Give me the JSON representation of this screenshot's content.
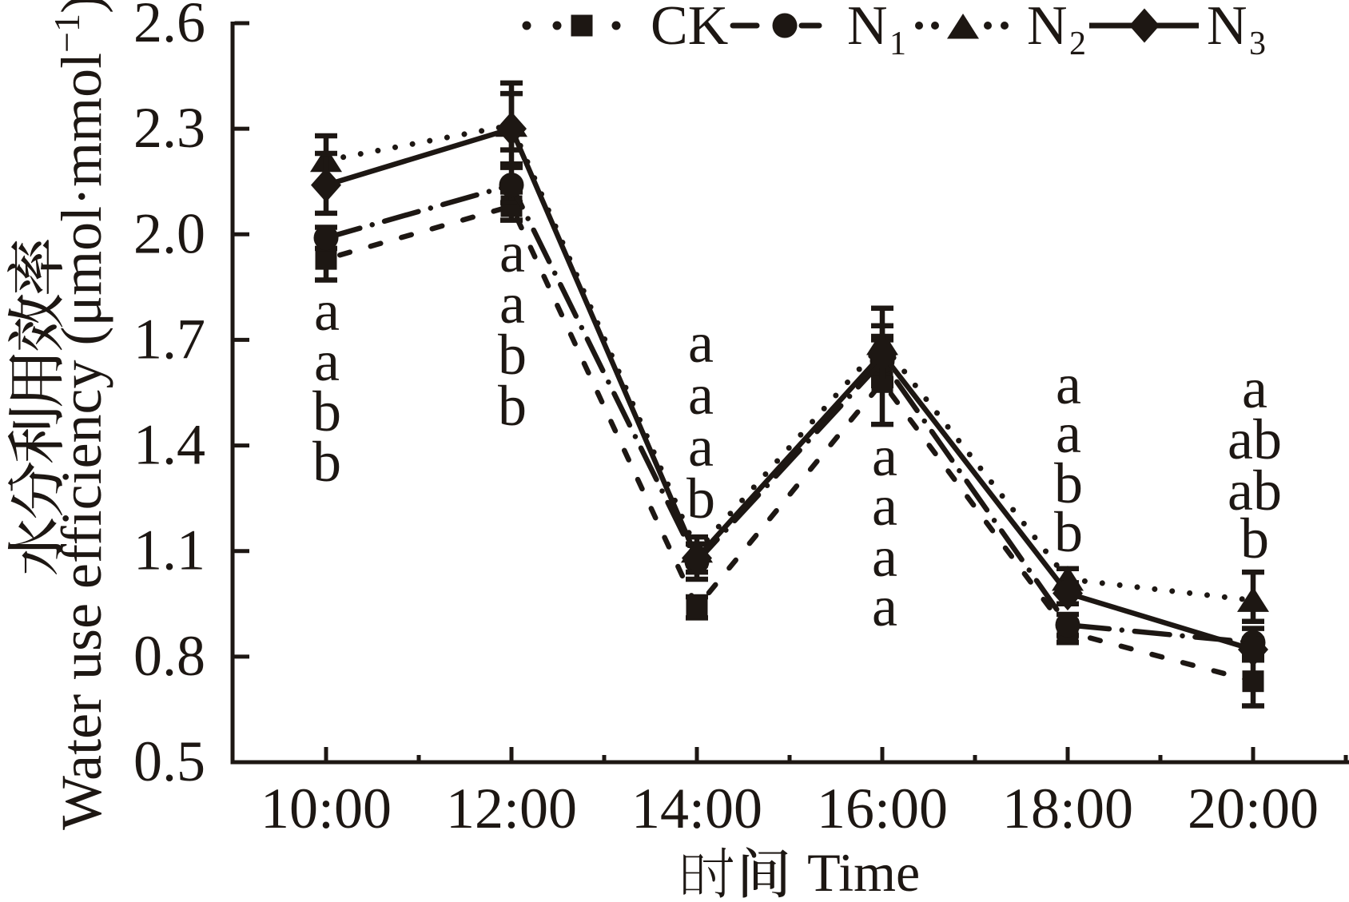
{
  "figure": {
    "type_label": "line-chart",
    "background": "#ffffff",
    "ink_color": "#1d1713"
  },
  "chart_data": {
    "type": "line",
    "title": "",
    "xlabel_cn": "时间",
    "xlabel_en": "Time",
    "ylabel_cn": "水分利用效率",
    "ylabel_en_pre": "Water use efficiency (μmol·mmol",
    "ylabel_en_sup": "−1",
    "ylabel_en_post": ")",
    "x_categories": [
      "10:00",
      "12:00",
      "14:00",
      "16:00",
      "18:00",
      "20:00"
    ],
    "x_hours": [
      10,
      12,
      14,
      16,
      18,
      20
    ],
    "x_minor_hours": [
      11,
      13,
      15,
      17,
      19,
      21
    ],
    "ylim": [
      0.5,
      2.6
    ],
    "yticks": [
      "0.5",
      "0.8",
      "1.1",
      "1.4",
      "1.7",
      "2.0",
      "2.3",
      "2.6"
    ],
    "grid": false,
    "legend_position": "top",
    "series": [
      {
        "name": "CK",
        "sub": "",
        "marker": "square",
        "linestyle": "dashed",
        "values": [
          1.93,
          2.08,
          0.94,
          1.58,
          0.87,
          0.73
        ],
        "errors": [
          0.06,
          0.04,
          0.03,
          0.12,
          0.03,
          0.07
        ]
      },
      {
        "name": "N",
        "sub": "1",
        "marker": "circle",
        "linestyle": "dashdot",
        "values": [
          1.99,
          2.14,
          1.07,
          1.64,
          0.89,
          0.84
        ],
        "errors": [
          0.03,
          0.05,
          0.05,
          0.07,
          0.03,
          0.04
        ]
      },
      {
        "name": "N",
        "sub": "2",
        "marker": "triangle",
        "linestyle": "dotted",
        "values": [
          2.21,
          2.31,
          1.1,
          1.69,
          1.02,
          0.96
        ],
        "errors": [
          0.07,
          [
            0.07,
            0.12
          ],
          0.04,
          0.1,
          0.03,
          [
            0.06,
            0.08
          ]
        ]
      },
      {
        "name": "N",
        "sub": "3",
        "marker": "diamond",
        "linestyle": "solid",
        "values": [
          2.14,
          2.3,
          1.08,
          1.66,
          0.98,
          0.82
        ],
        "errors": [
          [
            0.08,
            0.09
          ],
          0.1,
          0.04,
          0.08,
          0.03,
          0.03
        ]
      }
    ],
    "sig_letters": [
      {
        "x": "10:00",
        "letters": [
          "a",
          "a",
          "b",
          "b"
        ],
        "y_values": [
          1.728,
          1.585,
          1.442,
          1.299
        ]
      },
      {
        "x": "12:00",
        "letters": [
          "a",
          "a",
          "b",
          "b"
        ],
        "y_values": [
          1.894,
          1.749,
          1.603,
          1.458
        ]
      },
      {
        "x": "14:00",
        "letters": [
          "a",
          "a",
          "a",
          "b"
        ],
        "y_values": [
          1.637,
          1.49,
          1.342,
          1.195
        ]
      },
      {
        "x": "16:00",
        "letters": [
          "a",
          "a",
          "a",
          "a"
        ],
        "y_values": [
          1.315,
          1.174,
          1.029,
          0.888
        ]
      },
      {
        "x": "18:00",
        "letters": [
          "a",
          "a",
          "b",
          "b"
        ],
        "y_values": [
          1.519,
          1.381,
          1.238,
          1.099
        ]
      },
      {
        "x": "20:00",
        "letters": [
          "a",
          "ab",
          "ab",
          "b"
        ],
        "y_values": [
          1.508,
          1.363,
          1.217,
          1.081
        ]
      }
    ]
  }
}
